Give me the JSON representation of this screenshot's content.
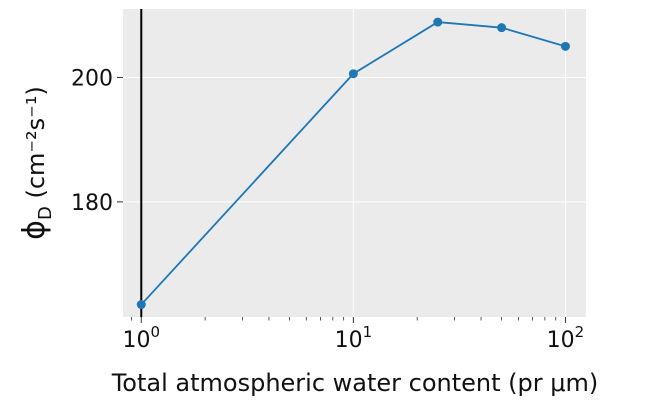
{
  "chart_data": {
    "type": "line",
    "xscale": "log",
    "xlim": [
      0.82,
      125
    ],
    "ylim": [
      161.5,
      211
    ],
    "x": [
      1,
      10,
      25,
      50,
      100
    ],
    "series": [
      {
        "name": "",
        "values": [
          163.5,
          200.6,
          208.9,
          208.0,
          205.0
        ]
      }
    ],
    "xlabel": "Total atmospheric water content (pr μm)",
    "ylabel_main": "ϕ",
    "ylabel_sub": "D",
    "ylabel_units": " (cm⁻²s⁻¹)",
    "xticks": [
      {
        "value": 1,
        "base": "10",
        "exp": "0"
      },
      {
        "value": 10,
        "base": "10",
        "exp": "1"
      },
      {
        "value": 100,
        "base": "10",
        "exp": "2"
      }
    ],
    "yticks": [
      {
        "value": 180,
        "label": "180"
      },
      {
        "value": 200,
        "label": "200"
      }
    ],
    "vline": {
      "x": 1
    },
    "grid": true,
    "colors": {
      "plot_background": "#ebebeb",
      "grid": "#ffffff",
      "series": "#1f77b4",
      "vline": "#000000"
    }
  }
}
